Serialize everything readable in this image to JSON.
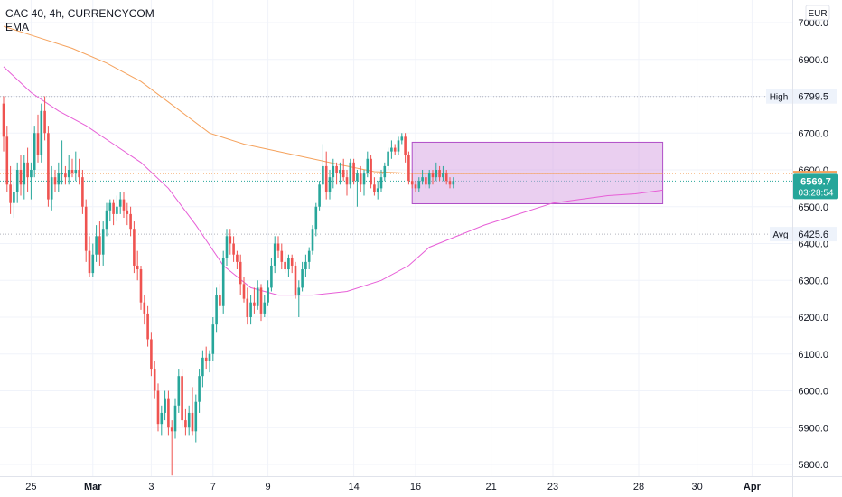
{
  "header": {
    "title": "CAC 40, 4h, CURRENCYCOM",
    "indicator": "EMA",
    "currency": "EUR"
  },
  "colors": {
    "up": "#26a69a",
    "down": "#ef5350",
    "ema_slow": "#f5a25d",
    "ema_fast": "#e75fd7",
    "box_fill": "#d8a7e3",
    "box_stroke": "#b04fc8",
    "price_badge": "#26a69a"
  },
  "chart_data": {
    "type": "candlestick",
    "ylim": [
      5770,
      7040
    ],
    "y_ticks": [
      "7000.0",
      "6900.0",
      "6800.0",
      "6700.0",
      "6600.0",
      "6500.0",
      "6400.0",
      "6300.0",
      "6200.0",
      "6100.0",
      "6000.0",
      "5900.0",
      "5800.0"
    ],
    "x_labels": [
      {
        "label": "25",
        "bar": 8
      },
      {
        "label": "Mar",
        "bar": 26
      },
      {
        "label": "3",
        "bar": 43
      },
      {
        "label": "7",
        "bar": 61
      },
      {
        "label": "9",
        "bar": 77
      },
      {
        "label": "14",
        "bar": 102
      },
      {
        "label": "16",
        "bar": 120
      },
      {
        "label": "21",
        "bar": 142
      },
      {
        "label": "23",
        "bar": 160
      },
      {
        "label": "28",
        "bar": 185
      },
      {
        "label": "30",
        "bar": 202
      },
      {
        "label": "Apr",
        "bar": 218
      }
    ],
    "candles": [
      [
        6780,
        6800,
        6650,
        6690
      ],
      [
        6690,
        6720,
        6540,
        6560
      ],
      [
        6560,
        6610,
        6480,
        6510
      ],
      [
        6510,
        6570,
        6470,
        6540
      ],
      [
        6540,
        6620,
        6510,
        6600
      ],
      [
        6600,
        6640,
        6530,
        6560
      ],
      [
        6560,
        6640,
        6520,
        6620
      ],
      [
        6620,
        6660,
        6540,
        6580
      ],
      [
        6580,
        6620,
        6520,
        6600
      ],
      [
        6600,
        6720,
        6580,
        6700
      ],
      [
        6700,
        6750,
        6620,
        6640
      ],
      [
        6640,
        6780,
        6620,
        6760
      ],
      [
        6760,
        6800,
        6680,
        6700
      ],
      [
        6700,
        6720,
        6500,
        6520
      ],
      [
        6520,
        6610,
        6490,
        6580
      ],
      [
        6580,
        6600,
        6540,
        6560
      ],
      [
        6560,
        6620,
        6540,
        6590
      ],
      [
        6590,
        6680,
        6560,
        6590
      ],
      [
        6590,
        6610,
        6560,
        6580
      ],
      [
        6580,
        6640,
        6560,
        6600
      ],
      [
        6600,
        6630,
        6580,
        6590
      ],
      [
        6590,
        6650,
        6570,
        6600
      ],
      [
        6600,
        6630,
        6560,
        6580
      ],
      [
        6580,
        6600,
        6480,
        6500
      ],
      [
        6500,
        6520,
        6350,
        6380
      ],
      [
        6380,
        6420,
        6310,
        6320
      ],
      [
        6320,
        6400,
        6310,
        6370
      ],
      [
        6370,
        6450,
        6350,
        6420
      ],
      [
        6420,
        6460,
        6340,
        6370
      ],
      [
        6370,
        6460,
        6340,
        6440
      ],
      [
        6440,
        6510,
        6420,
        6490
      ],
      [
        6490,
        6520,
        6460,
        6510
      ],
      [
        6510,
        6520,
        6450,
        6480
      ],
      [
        6480,
        6530,
        6460,
        6500
      ],
      [
        6500,
        6540,
        6480,
        6520
      ],
      [
        6520,
        6540,
        6470,
        6490
      ],
      [
        6490,
        6510,
        6450,
        6480
      ],
      [
        6480,
        6500,
        6420,
        6440
      ],
      [
        6440,
        6460,
        6320,
        6340
      ],
      [
        6340,
        6380,
        6300,
        6330
      ],
      [
        6330,
        6340,
        6220,
        6240
      ],
      [
        6240,
        6260,
        6180,
        6210
      ],
      [
        6210,
        6230,
        6120,
        6140
      ],
      [
        6140,
        6160,
        6040,
        6060
      ],
      [
        6060,
        6080,
        5980,
        6000
      ],
      [
        6000,
        6020,
        5890,
        5910
      ],
      [
        5910,
        5960,
        5880,
        5940
      ],
      [
        5940,
        6000,
        5920,
        5980
      ],
      [
        5980,
        6000,
        5880,
        5900
      ],
      [
        5900,
        5920,
        5770,
        5890
      ],
      [
        5890,
        5980,
        5870,
        5960
      ],
      [
        5960,
        6060,
        5940,
        6040
      ],
      [
        6040,
        6060,
        5900,
        5920
      ],
      [
        5920,
        5950,
        5880,
        5900
      ],
      [
        5900,
        5960,
        5880,
        5940
      ],
      [
        5940,
        6010,
        5880,
        5890
      ],
      [
        5890,
        5990,
        5860,
        5970
      ],
      [
        5970,
        6060,
        5940,
        6040
      ],
      [
        6040,
        6110,
        6010,
        6090
      ],
      [
        6090,
        6120,
        6060,
        6080
      ],
      [
        6080,
        6110,
        6050,
        6100
      ],
      [
        6100,
        6200,
        6080,
        6180
      ],
      [
        6180,
        6280,
        6160,
        6260
      ],
      [
        6260,
        6290,
        6220,
        6230
      ],
      [
        6230,
        6380,
        6210,
        6360
      ],
      [
        6360,
        6440,
        6340,
        6420
      ],
      [
        6420,
        6440,
        6370,
        6400
      ],
      [
        6400,
        6420,
        6350,
        6370
      ],
      [
        6370,
        6380,
        6330,
        6350
      ],
      [
        6350,
        6370,
        6260,
        6290
      ],
      [
        6290,
        6310,
        6240,
        6250
      ],
      [
        6250,
        6280,
        6180,
        6200
      ],
      [
        6200,
        6260,
        6180,
        6240
      ],
      [
        6240,
        6280,
        6210,
        6230
      ],
      [
        6230,
        6300,
        6220,
        6280
      ],
      [
        6280,
        6290,
        6190,
        6210
      ],
      [
        6210,
        6260,
        6200,
        6240
      ],
      [
        6240,
        6300,
        6230,
        6280
      ],
      [
        6280,
        6360,
        6270,
        6340
      ],
      [
        6340,
        6420,
        6320,
        6400
      ],
      [
        6400,
        6420,
        6360,
        6380
      ],
      [
        6380,
        6400,
        6330,
        6350
      ],
      [
        6350,
        6380,
        6320,
        6330
      ],
      [
        6330,
        6370,
        6310,
        6360
      ],
      [
        6360,
        6370,
        6320,
        6340
      ],
      [
        6340,
        6350,
        6250,
        6260
      ],
      [
        6260,
        6300,
        6200,
        6280
      ],
      [
        6280,
        6350,
        6270,
        6330
      ],
      [
        6330,
        6370,
        6310,
        6350
      ],
      [
        6350,
        6390,
        6330,
        6380
      ],
      [
        6380,
        6450,
        6370,
        6440
      ],
      [
        6440,
        6510,
        6420,
        6500
      ],
      [
        6500,
        6570,
        6490,
        6560
      ],
      [
        6560,
        6670,
        6550,
        6610
      ],
      [
        6610,
        6650,
        6520,
        6540
      ],
      [
        6540,
        6600,
        6520,
        6580
      ],
      [
        6580,
        6630,
        6550,
        6610
      ],
      [
        6610,
        6620,
        6560,
        6590
      ],
      [
        6590,
        6620,
        6560,
        6600
      ],
      [
        6600,
        6630,
        6570,
        6580
      ],
      [
        6580,
        6600,
        6530,
        6560
      ],
      [
        6560,
        6630,
        6550,
        6620
      ],
      [
        6620,
        6630,
        6560,
        6570
      ],
      [
        6570,
        6600,
        6500,
        6590
      ],
      [
        6590,
        6610,
        6540,
        6560
      ],
      [
        6560,
        6600,
        6530,
        6590
      ],
      [
        6590,
        6650,
        6580,
        6630
      ],
      [
        6630,
        6640,
        6550,
        6560
      ],
      [
        6560,
        6580,
        6530,
        6540
      ],
      [
        6540,
        6570,
        6520,
        6550
      ],
      [
        6550,
        6600,
        6540,
        6580
      ],
      [
        6580,
        6620,
        6570,
        6610
      ],
      [
        6610,
        6660,
        6600,
        6650
      ],
      [
        6650,
        6680,
        6630,
        6660
      ],
      [
        6660,
        6670,
        6640,
        6650
      ],
      [
        6650,
        6690,
        6640,
        6680
      ],
      [
        6680,
        6700,
        6670,
        6690
      ],
      [
        6690,
        6700,
        6620,
        6640
      ],
      [
        6640,
        6650,
        6560,
        6570
      ],
      [
        6570,
        6590,
        6550,
        6560
      ],
      [
        6560,
        6570,
        6540,
        6550
      ],
      [
        6550,
        6580,
        6540,
        6570
      ],
      [
        6570,
        6600,
        6560,
        6580
      ],
      [
        6580,
        6590,
        6550,
        6560
      ],
      [
        6560,
        6600,
        6550,
        6590
      ],
      [
        6590,
        6600,
        6560,
        6580
      ],
      [
        6580,
        6620,
        6570,
        6600
      ],
      [
        6600,
        6610,
        6570,
        6580
      ],
      [
        6580,
        6610,
        6570,
        6590
      ],
      [
        6590,
        6600,
        6560,
        6570
      ],
      [
        6570,
        6580,
        6550,
        6560
      ],
      [
        6560,
        6580,
        6550,
        6570
      ]
    ],
    "ema_slow": [
      [
        0,
        6990
      ],
      [
        10,
        6960
      ],
      [
        20,
        6930
      ],
      [
        30,
        6890
      ],
      [
        40,
        6840
      ],
      [
        50,
        6770
      ],
      [
        60,
        6700
      ],
      [
        70,
        6670
      ],
      [
        80,
        6650
      ],
      [
        90,
        6630
      ],
      [
        100,
        6610
      ],
      [
        108,
        6595
      ],
      [
        120,
        6590
      ],
      [
        140,
        6590
      ],
      [
        160,
        6590
      ],
      [
        175,
        6590
      ],
      [
        192,
        6590
      ]
    ],
    "ema_fast": [
      [
        0,
        6880
      ],
      [
        8,
        6810
      ],
      [
        16,
        6760
      ],
      [
        24,
        6720
      ],
      [
        32,
        6670
      ],
      [
        40,
        6620
      ],
      [
        48,
        6550
      ],
      [
        56,
        6450
      ],
      [
        64,
        6340
      ],
      [
        72,
        6280
      ],
      [
        80,
        6260
      ],
      [
        90,
        6260
      ],
      [
        100,
        6270
      ],
      [
        110,
        6300
      ],
      [
        118,
        6340
      ],
      [
        124,
        6390
      ],
      [
        132,
        6420
      ],
      [
        140,
        6450
      ],
      [
        150,
        6480
      ],
      [
        160,
        6510
      ],
      [
        168,
        6520
      ],
      [
        176,
        6530
      ],
      [
        184,
        6535
      ],
      [
        192,
        6545
      ]
    ],
    "range_box": {
      "bar_start": 119,
      "bar_end": 192,
      "top": 6675,
      "bottom": 6508
    },
    "lines": {
      "high": {
        "label": "High",
        "value": "6799.5",
        "y": 6799.5
      },
      "avg": {
        "label": "Avg",
        "value": "6425.6",
        "y": 6425.6
      },
      "last": {
        "value": "6569.7",
        "countdown": "03:28:54",
        "y": 6569.7
      },
      "ema_level": {
        "y": 6590
      }
    }
  }
}
